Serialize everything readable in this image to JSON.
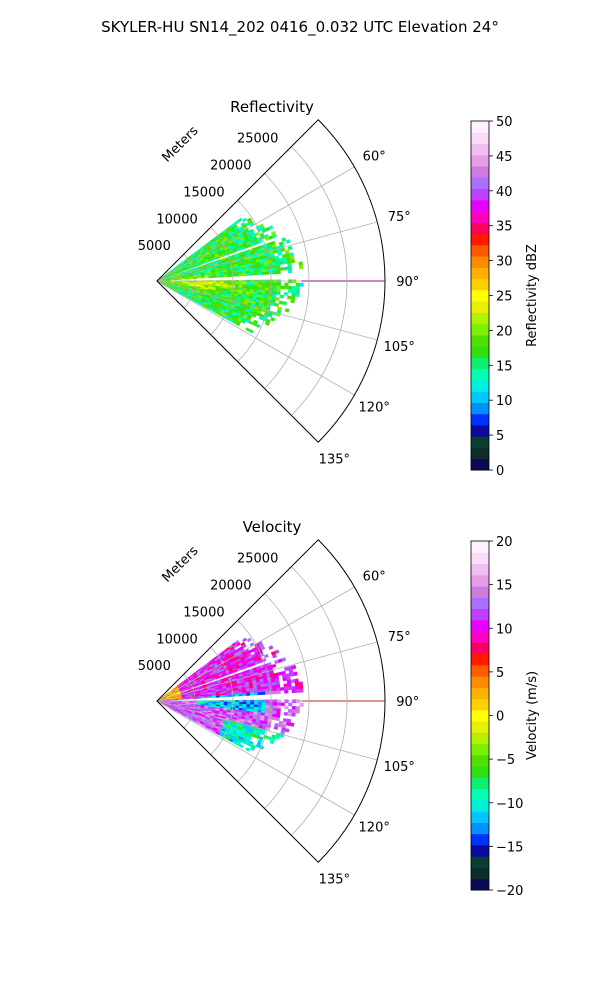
{
  "figure": {
    "suptitle": "SKYLER-HU  SN14_202  0416_0.032 UTC Elevation 24°"
  },
  "chart_data": [
    {
      "type": "polar-sector-radar",
      "title": "Reflectivity",
      "radial_axis_label": "Meters",
      "radial_ticks": [
        5000,
        10000,
        15000,
        20000,
        25000
      ],
      "radial_tick_labels": [
        "5000",
        "10000",
        "15000",
        "20000",
        "25000"
      ],
      "r_max": 30000,
      "azimuth_range_deg": [
        45,
        135
      ],
      "azimuth_ticks": [
        60,
        75,
        90,
        105,
        120,
        135
      ],
      "azimuth_tick_labels": [
        "60°",
        "75°",
        "90°",
        "105°",
        "120°",
        "135°"
      ],
      "grid": true,
      "colorbar": {
        "label": "Reflectivity dBZ",
        "vmin": 0,
        "vmax": 50,
        "ticks": [
          0,
          5,
          10,
          15,
          20,
          25,
          30,
          35,
          40,
          45,
          50
        ],
        "tick_labels": [
          "0",
          "5",
          "10",
          "15",
          "20",
          "25",
          "30",
          "35",
          "40",
          "45",
          "50"
        ],
        "colors": [
          "#0a0a55",
          "#0d2c2c",
          "#0a3f30",
          "#0a0aa0",
          "#0032ff",
          "#0090ff",
          "#00c8ff",
          "#00f0e0",
          "#00ffb0",
          "#10f070",
          "#30e010",
          "#50e000",
          "#7cf000",
          "#b4f000",
          "#e6f000",
          "#ffff00",
          "#ffd000",
          "#ffb000",
          "#ff8c00",
          "#ff5a00",
          "#ff1a00",
          "#ff0060",
          "#ff00c0",
          "#e600ff",
          "#c040ff",
          "#a870ff",
          "#d07ae0",
          "#e69de8",
          "#f0bdf0",
          "#fadcfa",
          "#fff0ff"
        ]
      },
      "echo_region": {
        "range_max_m": 19000,
        "azimuth_deg": [
          53,
          118
        ],
        "dominant_values_dbz": [
          12,
          26
        ]
      },
      "clear_rays_deg": [
        70,
        87
      ]
    },
    {
      "type": "polar-sector-radar",
      "title": "Velocity",
      "radial_axis_label": "Meters",
      "radial_ticks": [
        5000,
        10000,
        15000,
        20000,
        25000
      ],
      "radial_tick_labels": [
        "5000",
        "10000",
        "15000",
        "20000",
        "25000"
      ],
      "r_max": 30000,
      "azimuth_range_deg": [
        45,
        135
      ],
      "azimuth_ticks": [
        60,
        75,
        90,
        105,
        120,
        135
      ],
      "azimuth_tick_labels": [
        "60°",
        "75°",
        "90°",
        "105°",
        "120°",
        "135°"
      ],
      "grid": true,
      "colorbar": {
        "label": "Velocity (m/s)",
        "vmin": -20,
        "vmax": 20,
        "ticks": [
          -20,
          -15,
          -10,
          -5,
          0,
          5,
          10,
          15,
          20
        ],
        "tick_labels": [
          "−20",
          "−15",
          "−10",
          "−5",
          "0",
          "5",
          "10",
          "15",
          "20"
        ],
        "colors": [
          "#0a0a55",
          "#0d2c2c",
          "#0a3f30",
          "#0a0aa0",
          "#0032ff",
          "#0090ff",
          "#00c8ff",
          "#00f0e0",
          "#00ffb0",
          "#10f070",
          "#30e010",
          "#50e000",
          "#7cf000",
          "#b4f000",
          "#e6f000",
          "#ffff00",
          "#ffd000",
          "#ffb000",
          "#ff8c00",
          "#ff5a00",
          "#ff1a00",
          "#ff0060",
          "#ff00c0",
          "#e600ff",
          "#c040ff",
          "#a870ff",
          "#d07ae0",
          "#e69de8",
          "#f0bdf0",
          "#fadcfa",
          "#fff0ff"
        ]
      },
      "echo_region": {
        "range_max_m": 19000,
        "azimuth_deg": [
          53,
          118
        ],
        "dominant_values_ms": [
          -12,
          12
        ]
      },
      "clear_rays_deg": [
        70,
        87
      ]
    }
  ]
}
